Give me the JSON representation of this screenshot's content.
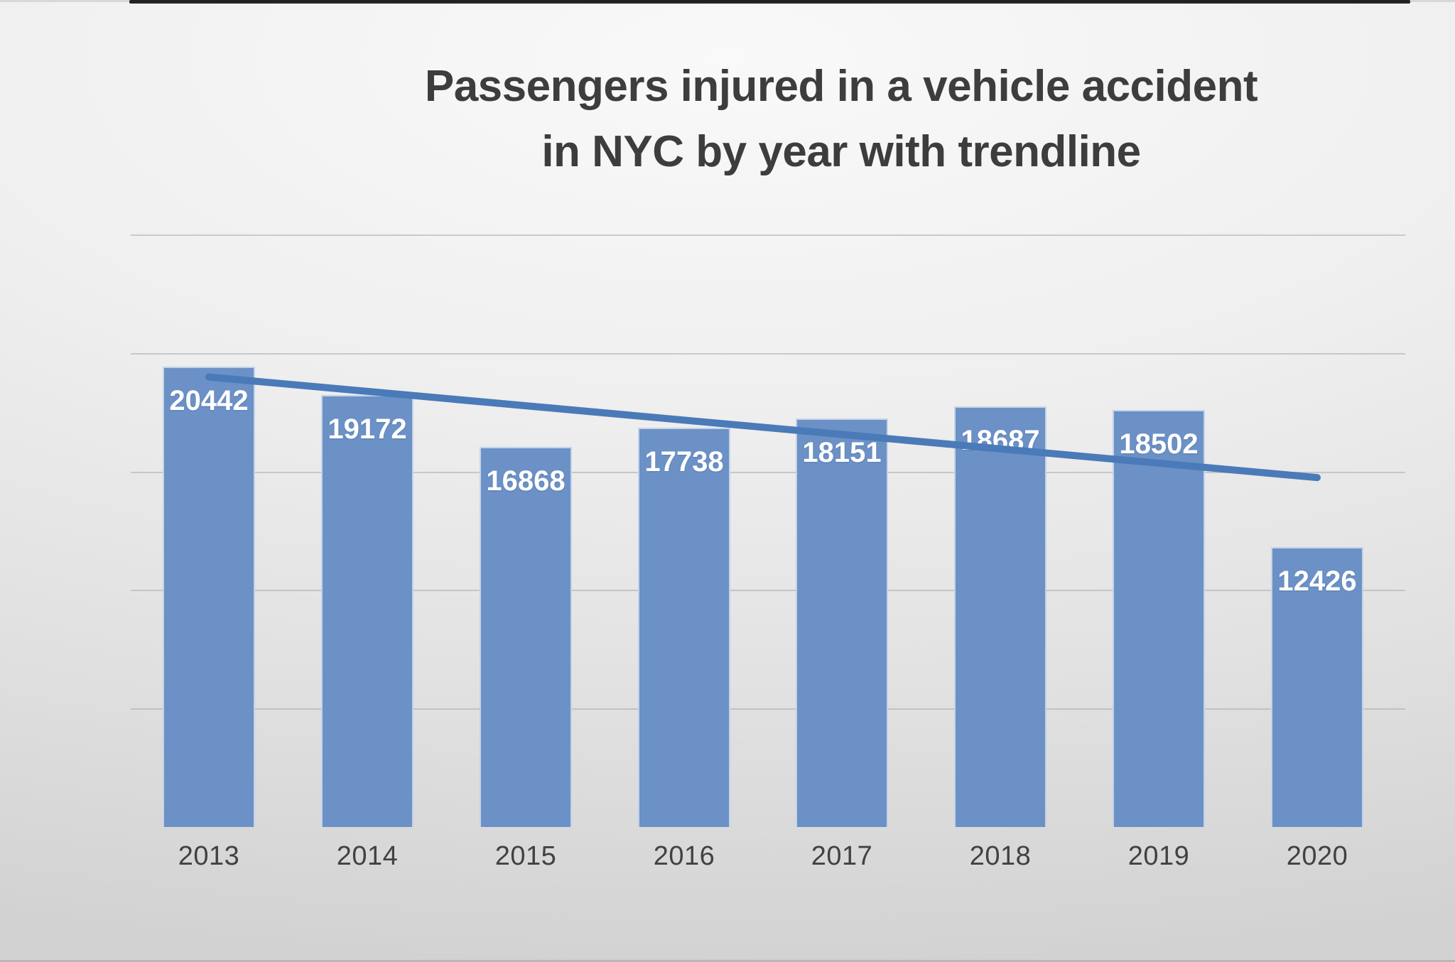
{
  "title": {
    "line1": "Passengers injured in a vehicle accident",
    "line2": "in NYC by year with trendline"
  },
  "chart_data": {
    "type": "bar",
    "title": "Passengers injured in a vehicle accident in NYC by year with trendline",
    "categories": [
      "2013",
      "2014",
      "2015",
      "2016",
      "2017",
      "2018",
      "2019",
      "2020"
    ],
    "values": [
      20442,
      19172,
      16868,
      17738,
      18151,
      18687,
      18502,
      12426
    ],
    "series": [
      {
        "name": "Passengers injured",
        "values": [
          20442,
          19172,
          16868,
          17738,
          18151,
          18687,
          18502,
          12426
        ]
      }
    ],
    "data_labels_visible": true,
    "trendline": {
      "type": "linear",
      "present": true,
      "color": "#4a7ab8"
    },
    "xlabel": "",
    "ylabel": "",
    "y_axis_labels_visible": false,
    "ylim": [
      0,
      25000
    ],
    "gridlines": "horizontal",
    "legend": "none",
    "bar_color": "#6b91c6",
    "bar_label_color": "#ffffff",
    "axis_label_color": "#414141",
    "title_color": "#3d3d3d",
    "gridline_color": "#a9a9a9",
    "axis_line_color": "#262626",
    "background_color_center": "#f9f9f9",
    "background_color_edge": "#d2d2d2"
  }
}
